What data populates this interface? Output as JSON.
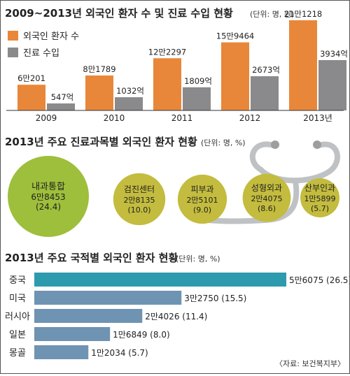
{
  "colors": {
    "orange": "#E8873A",
    "gray": "#8A8A8C",
    "olive": "#C3BC3E",
    "green": "#9EBF3B",
    "teal": "#2E9AAE",
    "steel": "#6F93B2",
    "tube": "#BFC2C4"
  },
  "section1": {
    "title": "2009~2013년 외국인 환자 수 및 진료 수입 현황",
    "unit": "(단위: 명, 원)",
    "legend": [
      "외국인 환자 수",
      "진료 수입"
    ]
  },
  "section2": {
    "title": "2013년 주요 진료과목별 외국인 환자 현황",
    "unit": "(단위: 명, %)"
  },
  "section3": {
    "title": "2013년 주요 국적별 외국인 환자 현황",
    "unit": "(단위: 명, %)"
  },
  "source": "〈자료: 보건복지부〉",
  "chart_data": [
    {
      "type": "bar",
      "title": "2009~2013년 외국인 환자 수 및 진료 수입 현황",
      "categories": [
        "2009",
        "2010",
        "2011",
        "2012",
        "2013년"
      ],
      "series": [
        {
          "name": "외국인 환자 수",
          "values": [
            60201,
            81789,
            122297,
            159464,
            211218
          ],
          "labels": [
            "6만201",
            "8만1789",
            "12만2297",
            "15만9464",
            "21만1218"
          ]
        },
        {
          "name": "진료 수입",
          "values": [
            547,
            1032,
            1809,
            2673,
            3934
          ],
          "labels": [
            "547억",
            "1032억",
            "1809억",
            "2673억",
            "3934억"
          ]
        }
      ]
    },
    {
      "type": "bubble",
      "title": "2013년 주요 진료과목별 외국인 환자 현황",
      "items": [
        {
          "name": "내과통합",
          "value": 68453,
          "pct": 24.4,
          "label": "6만8453",
          "pct_label": "(24.4)"
        },
        {
          "name": "검진센터",
          "value": 28135,
          "pct": 10.0,
          "label": "2만8135",
          "pct_label": "(10.0)"
        },
        {
          "name": "피부과",
          "value": 25101,
          "pct": 9.0,
          "label": "2만5101",
          "pct_label": "(9.0)"
        },
        {
          "name": "성형외과",
          "value": 24075,
          "pct": 8.6,
          "label": "2만4075",
          "pct_label": "(8.6)"
        },
        {
          "name": "산부인과",
          "value": 15899,
          "pct": 5.7,
          "label": "1만5899",
          "pct_label": "(5.7)"
        }
      ]
    },
    {
      "type": "bar",
      "orientation": "horizontal",
      "title": "2013년 주요 국적별 외국인 환자 현황",
      "categories": [
        "중국",
        "미국",
        "러시아",
        "일본",
        "몽골"
      ],
      "values": [
        56075,
        32750,
        24026,
        16849,
        12034
      ],
      "labels": [
        "5만6075 (26.5)",
        "3만2750 (15.5)",
        "2만4026 (11.4)",
        "1만6849 (8.0)",
        "1만2034 (5.7)"
      ]
    }
  ]
}
